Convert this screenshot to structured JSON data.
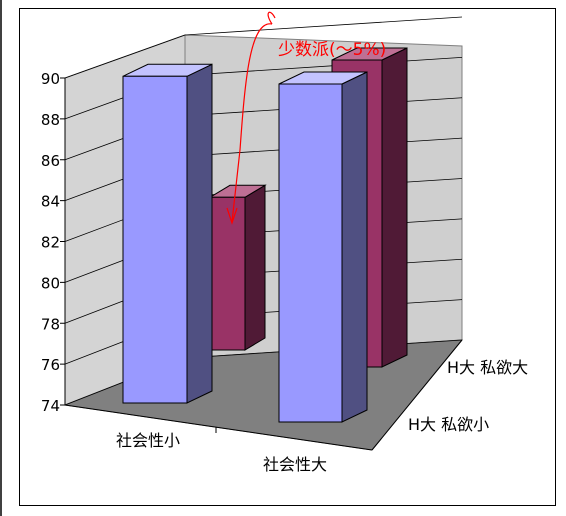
{
  "chart_data": {
    "type": "bar",
    "subtype": "3d-column",
    "title": "",
    "categories": [
      "社会性小",
      "社会性大"
    ],
    "depth_categories": [
      "H大 私欲小",
      "H大 私欲大"
    ],
    "series": [
      {
        "name": "H大 私欲小",
        "values": [
          90.2,
          90.0
        ]
      },
      {
        "name": "H大 私欲大",
        "values": [
          82.1,
          90.0
        ]
      }
    ],
    "y_ticks": [
      "74",
      "76",
      "78",
      "80",
      "82",
      "84",
      "86",
      "88",
      "90"
    ],
    "ylim": [
      74,
      90
    ],
    "grid": true,
    "legend": "none",
    "annotation": {
      "text": "少数派(～5%)",
      "arrow": "curved, from the rear 社会性大 column down to the front-row 社会性小 bar"
    },
    "colors": {
      "front_face": "#9999ff",
      "front_side": "#505082",
      "front_top": "#c3c3ff",
      "back_face": "#993366",
      "back_side": "#501a36",
      "back_top": "#be6f94",
      "annotation": "#ff0000",
      "floor": "#808080",
      "wall": "#d4d4d4"
    }
  }
}
